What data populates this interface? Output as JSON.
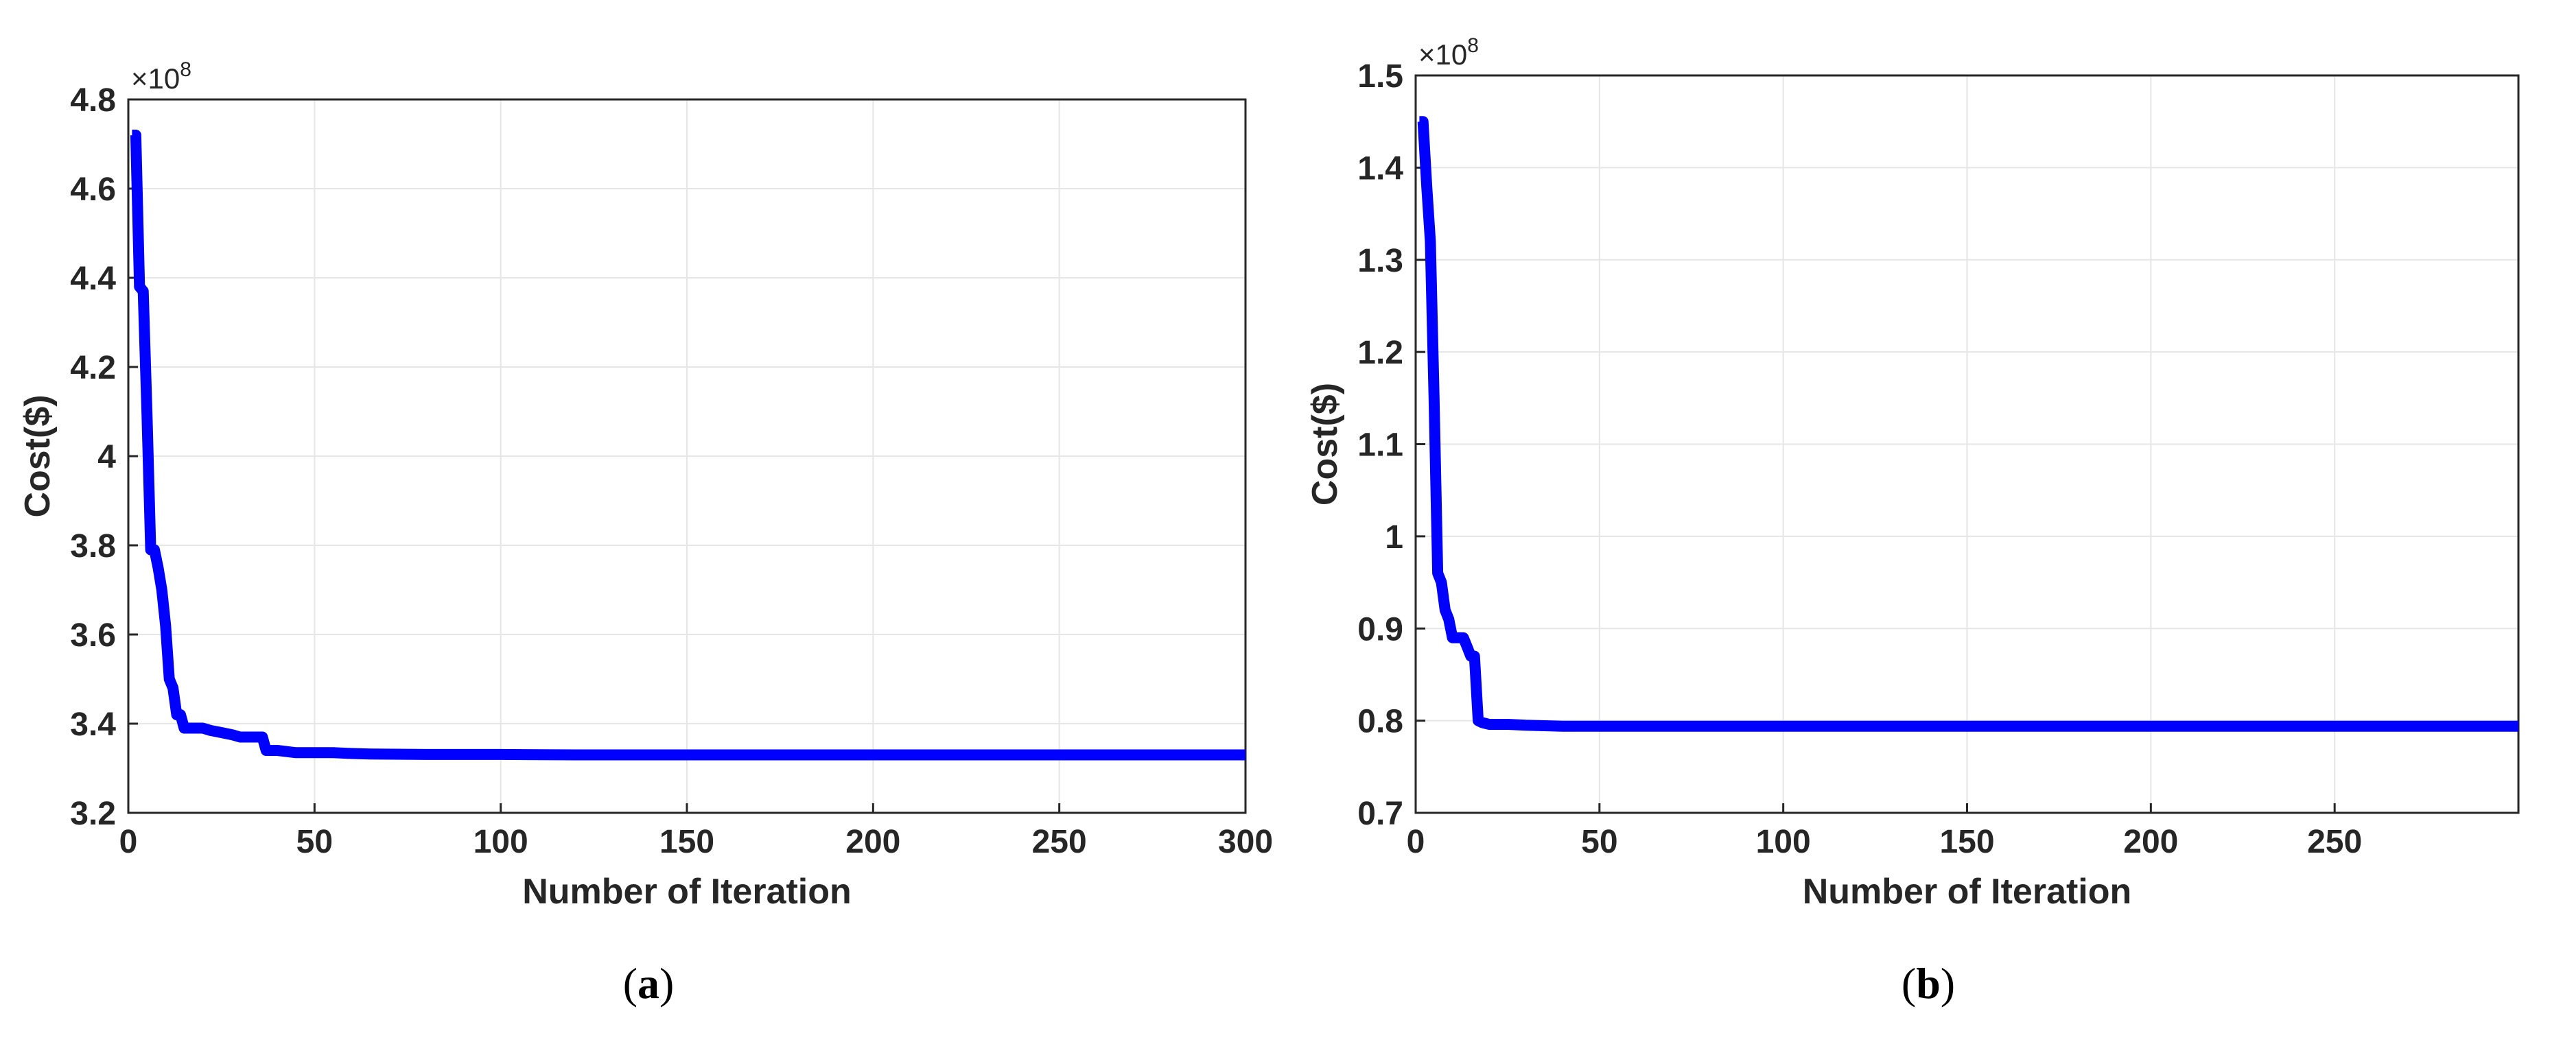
{
  "chart_data": [
    {
      "type": "line",
      "caption": "(a)",
      "caption_letter": "a",
      "xlabel": "Number of Iteration",
      "ylabel": "Cost($)",
      "y_multiplier": "×10",
      "y_multiplier_exp": "8",
      "xlim": [
        0,
        300
      ],
      "ylim": [
        3.2,
        4.8
      ],
      "xticks": [
        0,
        50,
        100,
        150,
        200,
        250,
        300
      ],
      "xtick_labels": [
        "0",
        "50",
        "100",
        "150",
        "200",
        "250",
        "300"
      ],
      "yticks": [
        3.2,
        3.4,
        3.6,
        3.8,
        4.0,
        4.2,
        4.4,
        4.6,
        4.8
      ],
      "ytick_labels": [
        "3.2",
        "3.4",
        "3.6",
        "3.8",
        "4",
        "4.2",
        "4.4",
        "4.6",
        "4.8"
      ],
      "grid": true,
      "color": "#0000ff",
      "series": [
        {
          "x": [
            1,
            2,
            3,
            4,
            5,
            6,
            7,
            8,
            9,
            10,
            11,
            12,
            13,
            14,
            15,
            16,
            20,
            22,
            25,
            28,
            30,
            33,
            35,
            36,
            37,
            40,
            45,
            50,
            55,
            60,
            65,
            80,
            100,
            120,
            150,
            200,
            250,
            300
          ],
          "y": [
            4.72,
            4.72,
            4.38,
            4.37,
            4.1,
            3.79,
            3.79,
            3.75,
            3.7,
            3.62,
            3.5,
            3.48,
            3.42,
            3.42,
            3.39,
            3.39,
            3.39,
            3.385,
            3.38,
            3.375,
            3.37,
            3.37,
            3.37,
            3.37,
            3.34,
            3.34,
            3.335,
            3.335,
            3.335,
            3.333,
            3.332,
            3.331,
            3.331,
            3.33,
            3.33,
            3.33,
            3.33,
            3.33
          ]
        }
      ]
    },
    {
      "type": "line",
      "caption": "(b)",
      "caption_letter": "b",
      "xlabel": "Number of Iteration",
      "ylabel": "Cost($)",
      "y_multiplier": "×10",
      "y_multiplier_exp": "8",
      "xlim": [
        0,
        300
      ],
      "ylim": [
        0.7,
        1.5
      ],
      "xticks": [
        0,
        50,
        100,
        150,
        200,
        250
      ],
      "xtick_labels": [
        "0",
        "50",
        "100",
        "150",
        "200",
        "250"
      ],
      "yticks": [
        0.7,
        0.8,
        0.9,
        1.0,
        1.1,
        1.2,
        1.3,
        1.4,
        1.5
      ],
      "ytick_labels": [
        "0.7",
        "0.8",
        "0.9",
        "1",
        "1.1",
        "1.2",
        "1.3",
        "1.4",
        "1.5"
      ],
      "grid": true,
      "color": "#0000ff",
      "series": [
        {
          "x": [
            1,
            2,
            3,
            4,
            5,
            6,
            7,
            8,
            9,
            10,
            11,
            13,
            14,
            15,
            16,
            17,
            18,
            20,
            25,
            30,
            40,
            60,
            100,
            150,
            200,
            250,
            300
          ],
          "y": [
            1.45,
            1.45,
            1.38,
            1.32,
            1.15,
            0.96,
            0.95,
            0.92,
            0.91,
            0.89,
            0.89,
            0.89,
            0.88,
            0.87,
            0.87,
            0.8,
            0.798,
            0.796,
            0.796,
            0.795,
            0.794,
            0.794,
            0.794,
            0.794,
            0.794,
            0.794,
            0.794
          ]
        }
      ]
    }
  ]
}
